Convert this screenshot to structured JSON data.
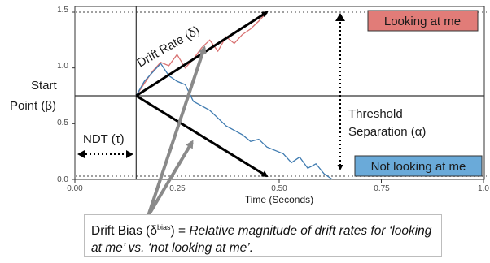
{
  "axes": {
    "x_ticks": [
      "0.00",
      "0.25",
      "0.50",
      "0.75",
      "1.0"
    ],
    "y_ticks": [
      "0.0",
      "0.5",
      "1.0",
      "1.5"
    ],
    "x_title": "Time (Seconds)"
  },
  "labels": {
    "start_point": [
      "Start",
      "Point (β)"
    ],
    "ndt": "NDT (τ)",
    "drift_rate": "Drift Rate (δ)",
    "threshold": [
      "Threshold",
      "Separation (α)"
    ],
    "upper_option": "Looking at me",
    "lower_option": "Not looking at me"
  },
  "note": {
    "prefix": "Drift Bias (δ",
    "superscript": "bias",
    "middle": ") = ",
    "italic_text": "Relative magnitude of drift rates for ‘looking at me’ vs. ‘not looking at me’."
  },
  "colors": {
    "upper_box": "#e17c78",
    "lower_box": "#6aaad9",
    "upper_path": "#d97373",
    "lower_path": "#3f7bb0",
    "bias_arrow": "#8a8a8a",
    "threshold_dotted": "#a0a0a0"
  },
  "chart_data": {
    "type": "line",
    "xlim": [
      0,
      1.0
    ],
    "ylim": [
      0,
      1.5
    ],
    "start_point": 0.75,
    "ndt": 0.15,
    "upper_threshold": 1.5,
    "lower_threshold": 0.0,
    "drift_arrows": [
      {
        "x0": 0.15,
        "y0": 0.75,
        "x1": 0.47,
        "y1": 1.5
      },
      {
        "x0": 0.15,
        "y0": 0.75,
        "x1": 0.47,
        "y1": 0.0
      }
    ],
    "series": [
      {
        "color": "red",
        "x": [
          0.15,
          0.17,
          0.19,
          0.21,
          0.23,
          0.25,
          0.27,
          0.29,
          0.31,
          0.33,
          0.35,
          0.37,
          0.39,
          0.41,
          0.43,
          0.45,
          0.47
        ],
        "y": [
          0.75,
          0.86,
          0.97,
          1.05,
          1.02,
          1.12,
          1.0,
          1.08,
          1.18,
          1.25,
          1.15,
          1.28,
          1.22,
          1.3,
          1.35,
          1.42,
          1.5
        ]
      },
      {
        "color": "blue",
        "x": [
          0.15,
          0.17,
          0.19,
          0.21,
          0.23,
          0.25,
          0.27,
          0.29,
          0.31,
          0.33,
          0.35,
          0.37,
          0.39,
          0.41,
          0.43,
          0.45,
          0.47,
          0.49,
          0.51,
          0.53,
          0.55,
          0.57,
          0.59,
          0.61,
          0.63
        ],
        "y": [
          0.75,
          0.88,
          0.96,
          1.04,
          0.93,
          0.88,
          0.85,
          0.7,
          0.66,
          0.62,
          0.55,
          0.48,
          0.44,
          0.4,
          0.34,
          0.36,
          0.29,
          0.26,
          0.23,
          0.15,
          0.2,
          0.1,
          0.14,
          0.05,
          0.0
        ]
      }
    ]
  }
}
